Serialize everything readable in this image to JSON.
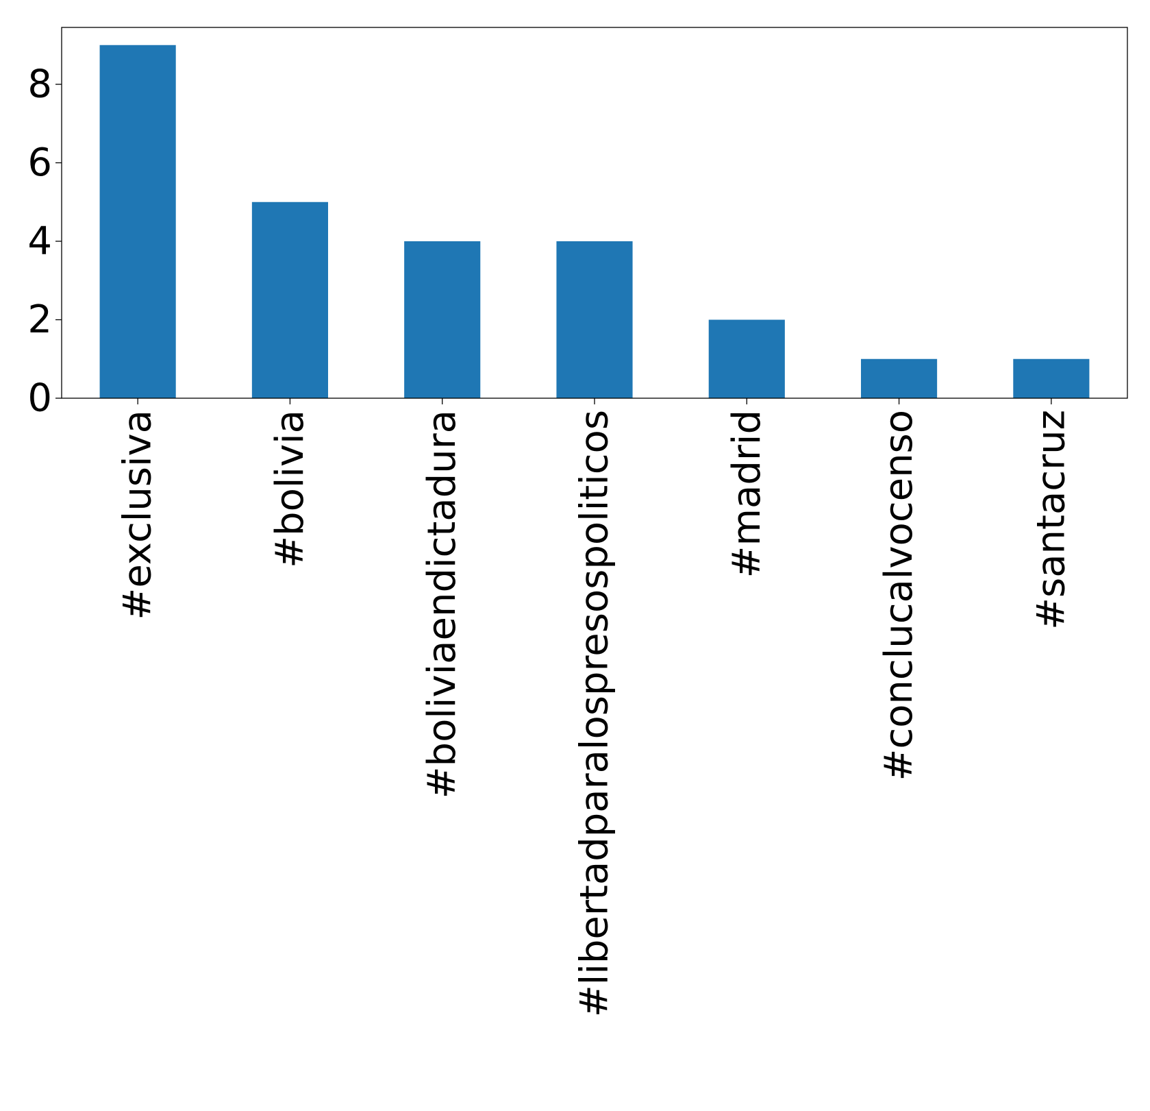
{
  "chart_data": {
    "type": "bar",
    "title": "",
    "xlabel": "",
    "ylabel": "",
    "categories": [
      "#exclusiva",
      "#bolivia",
      "#boliviaendictadura",
      "#libertadparalospresospoliticos",
      "#madrid",
      "#conclucalvocenso",
      "#santacruz"
    ],
    "values": [
      9,
      5,
      4,
      4,
      2,
      1,
      1
    ],
    "ylim": [
      0,
      9.45
    ],
    "yticks": [
      0,
      2,
      4,
      6,
      8
    ],
    "grid": false,
    "legend": "none",
    "bar_color": "#1f77b4"
  }
}
